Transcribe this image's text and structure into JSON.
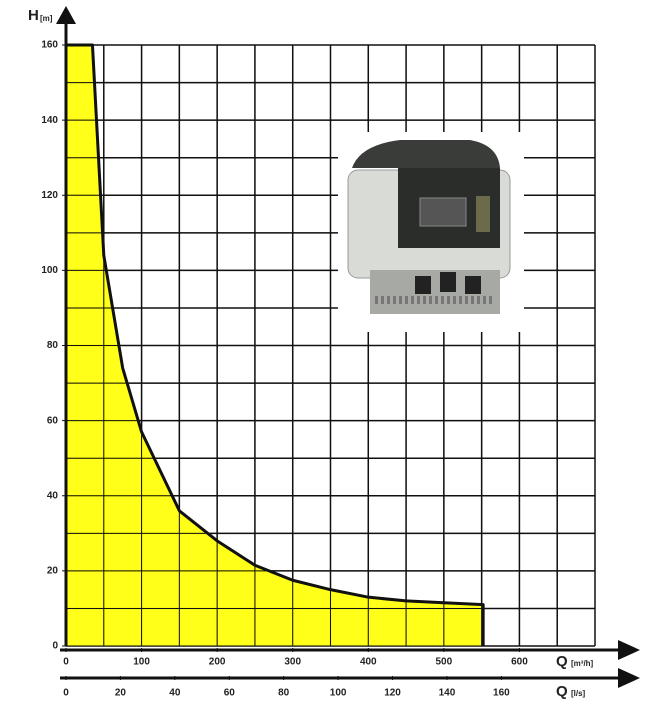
{
  "chart_data": {
    "type": "area",
    "y_label": "H",
    "y_unit": "[m]",
    "x_label": "Q",
    "x_unit": "[m³/h]",
    "x2_label": "Q",
    "x2_unit": "[l/s]",
    "x": [
      0,
      35,
      50,
      75,
      100,
      150,
      200,
      250,
      300,
      350,
      400,
      450,
      500,
      552
    ],
    "values": [
      160,
      160,
      104,
      74,
      57,
      36,
      28,
      21.5,
      17.5,
      15,
      13,
      12,
      11.5,
      11
    ],
    "color": "#ffff00",
    "line_color": "#111111",
    "xlim": [
      0,
      700
    ],
    "xticks": [
      0,
      100,
      200,
      300,
      400,
      500,
      600
    ],
    "x2lim": [
      0,
      194.4
    ],
    "x2ticks": [
      0,
      20,
      40,
      60,
      80,
      100,
      120,
      140,
      160
    ],
    "ylim": [
      0,
      160
    ],
    "yticks": [
      0,
      20,
      40,
      60,
      80,
      100,
      120,
      140,
      160
    ],
    "grid": true,
    "xgrid": [
      0,
      50,
      100,
      150,
      200,
      250,
      300,
      350,
      400,
      450,
      500,
      550,
      600,
      650,
      700
    ],
    "ygrid": [
      0,
      10,
      20,
      30,
      40,
      50,
      60,
      70,
      80,
      90,
      100,
      110,
      120,
      130,
      140,
      150,
      160
    ]
  }
}
